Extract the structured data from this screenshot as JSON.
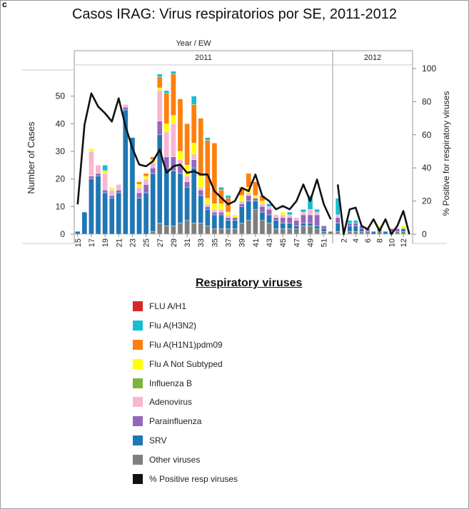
{
  "panel_label": "c",
  "chart_data": {
    "type": "bar",
    "stacked": true,
    "title": "Casos IRAG: Virus respiratorios por SE, 2011-2012",
    "header_label": "Year  /  EW",
    "year_labels": [
      "2011",
      "2012"
    ],
    "ylabel": "Number of Cases",
    "y2label": "% Positive for respiratory viruses",
    "ylim": [
      0,
      60
    ],
    "y2lim": [
      0,
      100
    ],
    "yticks": [
      0,
      10,
      20,
      30,
      40,
      50
    ],
    "y2ticks": [
      0,
      20,
      40,
      60,
      80,
      100
    ],
    "legend_title": "Respiratory viruses",
    "legend_placement": "bottom",
    "colors": {
      "FLU A/H1": "#d62728",
      "Flu A(H3N2)": "#17becf",
      "Flu A(H1N1)pdm09": "#ff7f0e",
      "Flu A Not Subtyped": "#ffff00",
      "Influenza B": "#7fb33f",
      "Adenovirus": "#f7b6d2",
      "Parainfluenza": "#9467bd",
      "SRV": "#1f77b4",
      "Other viruses": "#7f7f7f",
      "% Positive resp viruses": "#111111"
    },
    "series_order": [
      "Other viruses",
      "SRV",
      "Parainfluenza",
      "Adenovirus",
      "Influenza B",
      "Flu A Not Subtyped",
      "Flu A(H1N1)pdm09",
      "Flu A(H3N2)",
      "FLU A/H1"
    ],
    "legend_order": [
      "FLU A/H1",
      "Flu A(H3N2)",
      "Flu A(H1N1)pdm09",
      "Flu A Not Subtyped",
      "Influenza B",
      "Adenovirus",
      "Parainfluenza",
      "SRV",
      "Other viruses",
      "% Positive resp viruses"
    ],
    "categories_2011": [
      "15",
      "16",
      "17",
      "18",
      "19",
      "20",
      "21",
      "22",
      "23",
      "24",
      "25",
      "26",
      "27",
      "28",
      "29",
      "30",
      "31",
      "32",
      "33",
      "34",
      "35",
      "36",
      "37",
      "38",
      "39",
      "40",
      "41",
      "42",
      "43",
      "44",
      "45",
      "46",
      "47",
      "48",
      "49",
      "50",
      "51",
      "52"
    ],
    "categories_2012": [
      "1",
      "2",
      "3",
      "4",
      "5",
      "6",
      "7",
      "8",
      "9",
      "10",
      "11",
      "12",
      "13"
    ],
    "tick_labels_2011": [
      "15",
      "17",
      "19",
      "21",
      "23",
      "25",
      "27",
      "29",
      "31",
      "33",
      "35",
      "37",
      "39",
      "41",
      "43",
      "45",
      "47",
      "49",
      "51"
    ],
    "tick_labels_2012": [
      "2",
      "4",
      "6",
      "8",
      "10",
      "12"
    ],
    "stacks_2011": [
      {
        "Other viruses": 0,
        "SRV": 1,
        "Parainfluenza": 0,
        "Adenovirus": 0,
        "Influenza B": 0,
        "Flu A Not Subtyped": 0,
        "Flu A(H1N1)pdm09": 0,
        "Flu A(H3N2)": 0,
        "FLU A/H1": 0
      },
      {
        "Other viruses": 0,
        "SRV": 8,
        "Parainfluenza": 0,
        "Adenovirus": 0,
        "Influenza B": 0,
        "Flu A Not Subtyped": 0,
        "Flu A(H1N1)pdm09": 0,
        "Flu A(H3N2)": 0,
        "FLU A/H1": 0
      },
      {
        "Other viruses": 0,
        "SRV": 20,
        "Parainfluenza": 1,
        "Adenovirus": 9,
        "Influenza B": 0,
        "Flu A Not Subtyped": 1,
        "Flu A(H1N1)pdm09": 0,
        "Flu A(H3N2)": 0,
        "FLU A/H1": 0
      },
      {
        "Other viruses": 0,
        "SRV": 21,
        "Parainfluenza": 1,
        "Adenovirus": 3,
        "Influenza B": 0,
        "Flu A Not Subtyped": 0,
        "Flu A(H1N1)pdm09": 0,
        "Flu A(H3N2)": 0,
        "FLU A/H1": 0
      },
      {
        "Other viruses": 0,
        "SRV": 15,
        "Parainfluenza": 1,
        "Adenovirus": 6,
        "Influenza B": 0,
        "Flu A Not Subtyped": 1,
        "Flu A(H1N1)pdm09": 0,
        "Flu A(H3N2)": 2,
        "FLU A/H1": 0
      },
      {
        "Other viruses": 0,
        "SRV": 13,
        "Parainfluenza": 1,
        "Adenovirus": 2,
        "Influenza B": 0,
        "Flu A Not Subtyped": 1,
        "Flu A(H1N1)pdm09": 0,
        "Flu A(H3N2)": 0,
        "FLU A/H1": 0
      },
      {
        "Other viruses": 0,
        "SRV": 15,
        "Parainfluenza": 1,
        "Adenovirus": 2,
        "Influenza B": 0,
        "Flu A Not Subtyped": 0,
        "Flu A(H1N1)pdm09": 0,
        "Flu A(H3N2)": 0,
        "FLU A/H1": 0
      },
      {
        "Other viruses": 0,
        "SRV": 45,
        "Parainfluenza": 1,
        "Adenovirus": 1,
        "Influenza B": 0,
        "Flu A Not Subtyped": 0,
        "Flu A(H1N1)pdm09": 0,
        "Flu A(H3N2)": 0,
        "FLU A/H1": 0
      },
      {
        "Other viruses": 0,
        "SRV": 35,
        "Parainfluenza": 0,
        "Adenovirus": 0,
        "Influenza B": 0,
        "Flu A Not Subtyped": 0,
        "Flu A(H1N1)pdm09": 0,
        "Flu A(H3N2)": 0,
        "FLU A/H1": 0
      },
      {
        "Other viruses": 0,
        "SRV": 13,
        "Parainfluenza": 2,
        "Adenovirus": 2,
        "Influenza B": 0,
        "Flu A Not Subtyped": 1,
        "Flu A(H1N1)pdm09": 1,
        "Flu A(H3N2)": 0,
        "FLU A/H1": 0
      },
      {
        "Other viruses": 0,
        "SRV": 15,
        "Parainfluenza": 3,
        "Adenovirus": 2,
        "Influenza B": 0,
        "Flu A Not Subtyped": 1,
        "Flu A(H1N1)pdm09": 1,
        "Flu A(H3N2)": 0,
        "FLU A/H1": 0
      },
      {
        "Other viruses": 1,
        "SRV": 21,
        "Parainfluenza": 2,
        "Adenovirus": 2,
        "Influenza B": 0,
        "Flu A Not Subtyped": 1,
        "Flu A(H1N1)pdm09": 1,
        "Flu A(H3N2)": 0,
        "FLU A/H1": 0
      },
      {
        "Other viruses": 4,
        "SRV": 32,
        "Parainfluenza": 5,
        "Adenovirus": 11,
        "Influenza B": 0,
        "Flu A Not Subtyped": 1,
        "Flu A(H1N1)pdm09": 4,
        "Flu A(H3N2)": 1,
        "FLU A/H1": 0
      },
      {
        "Other viruses": 3,
        "SRV": 21,
        "Parainfluenza": 4,
        "Adenovirus": 9,
        "Influenza B": 0,
        "Flu A Not Subtyped": 3,
        "Flu A(H1N1)pdm09": 11,
        "Flu A(H3N2)": 1,
        "FLU A/H1": 0
      },
      {
        "Other viruses": 3,
        "SRV": 20,
        "Parainfluenza": 5,
        "Adenovirus": 12,
        "Influenza B": 0,
        "Flu A Not Subtyped": 3,
        "Flu A(H1N1)pdm09": 15,
        "Flu A(H3N2)": 1,
        "FLU A/H1": 0
      },
      {
        "Other viruses": 4,
        "SRV": 18,
        "Parainfluenza": 3,
        "Adenovirus": 2,
        "Influenza B": 0,
        "Flu A Not Subtyped": 3,
        "Flu A(H1N1)pdm09": 19,
        "Flu A(H3N2)": 0,
        "FLU A/H1": 0
      },
      {
        "Other viruses": 5,
        "SRV": 12,
        "Parainfluenza": 2,
        "Adenovirus": 2,
        "Influenza B": 0,
        "Flu A Not Subtyped": 4,
        "Flu A(H1N1)pdm09": 15,
        "Flu A(H3N2)": 0,
        "FLU A/H1": 0
      },
      {
        "Other viruses": 4,
        "SRV": 20,
        "Parainfluenza": 3,
        "Adenovirus": 2,
        "Influenza B": 0,
        "Flu A Not Subtyped": 4,
        "Flu A(H1N1)pdm09": 14,
        "Flu A(H3N2)": 3,
        "FLU A/H1": 0
      },
      {
        "Other viruses": 4,
        "SRV": 10,
        "Parainfluenza": 2,
        "Adenovirus": 1,
        "Influenza B": 0,
        "Flu A Not Subtyped": 4,
        "Flu A(H1N1)pdm09": 21,
        "Flu A(H3N2)": 0,
        "FLU A/H1": 0
      },
      {
        "Other viruses": 3,
        "SRV": 6,
        "Parainfluenza": 1,
        "Adenovirus": 1,
        "Influenza B": 0,
        "Flu A Not Subtyped": 2,
        "Flu A(H1N1)pdm09": 21,
        "Flu A(H3N2)": 1,
        "FLU A/H1": 0
      },
      {
        "Other viruses": 2,
        "SRV": 5,
        "Parainfluenza": 1,
        "Adenovirus": 1,
        "Influenza B": 0,
        "Flu A Not Subtyped": 2,
        "Flu A(H1N1)pdm09": 22,
        "Flu A(H3N2)": 0,
        "FLU A/H1": 0
      },
      {
        "Other viruses": 2,
        "SRV": 5,
        "Parainfluenza": 1,
        "Adenovirus": 1,
        "Influenza B": 0,
        "Flu A Not Subtyped": 2,
        "Flu A(H1N1)pdm09": 5,
        "Flu A(H3N2)": 1,
        "FLU A/H1": 0
      },
      {
        "Other viruses": 2,
        "SRV": 3,
        "Parainfluenza": 1,
        "Adenovirus": 1,
        "Influenza B": 0,
        "Flu A Not Subtyped": 1,
        "Flu A(H1N1)pdm09": 5,
        "Flu A(H3N2)": 1,
        "FLU A/H1": 0
      },
      {
        "Other viruses": 2,
        "SRV": 3,
        "Parainfluenza": 1,
        "Adenovirus": 0,
        "Influenza B": 0,
        "Flu A Not Subtyped": 1,
        "Flu A(H1N1)pdm09": 0,
        "Flu A(H3N2)": 0,
        "FLU A/H1": 0
      },
      {
        "Other viruses": 4,
        "SRV": 6,
        "Parainfluenza": 1,
        "Adenovirus": 1,
        "Influenza B": 0,
        "Flu A Not Subtyped": 2,
        "Flu A(H1N1)pdm09": 3,
        "Flu A(H3N2)": 0,
        "FLU A/H1": 0
      },
      {
        "Other viruses": 5,
        "SRV": 7,
        "Parainfluenza": 2,
        "Adenovirus": 1,
        "Influenza B": 0,
        "Flu A Not Subtyped": 2,
        "Flu A(H1N1)pdm09": 5,
        "Flu A(H3N2)": 0,
        "FLU A/H1": 0
      },
      {
        "Other viruses": 9,
        "SRV": 3,
        "Parainfluenza": 1,
        "Adenovirus": 0,
        "Influenza B": 0,
        "Flu A Not Subtyped": 1,
        "Flu A(H1N1)pdm09": 5,
        "Flu A(H3N2)": 0,
        "FLU A/H1": 0
      },
      {
        "Other viruses": 5,
        "SRV": 3,
        "Parainfluenza": 2,
        "Adenovirus": 1,
        "Influenza B": 0,
        "Flu A Not Subtyped": 1,
        "Flu A(H1N1)pdm09": 2,
        "Flu A(H3N2)": 0,
        "FLU A/H1": 0
      },
      {
        "Other viruses": 4,
        "SRV": 3,
        "Parainfluenza": 2,
        "Adenovirus": 1,
        "Influenza B": 0,
        "Flu A Not Subtyped": 0,
        "Flu A(H1N1)pdm09": 0,
        "Flu A(H3N2)": 1,
        "FLU A/H1": 0
      },
      {
        "Other viruses": 2,
        "SRV": 3,
        "Parainfluenza": 1,
        "Adenovirus": 1,
        "Influenza B": 0,
        "Flu A Not Subtyped": 0,
        "Flu A(H1N1)pdm09": 0,
        "Flu A(H3N2)": 0,
        "FLU A/H1": 0
      },
      {
        "Other viruses": 2,
        "SRV": 2,
        "Parainfluenza": 2,
        "Adenovirus": 1,
        "Influenza B": 0,
        "Flu A Not Subtyped": 1,
        "Flu A(H1N1)pdm09": 0,
        "Flu A(H3N2)": 0,
        "FLU A/H1": 0
      },
      {
        "Other viruses": 2,
        "SRV": 2,
        "Parainfluenza": 2,
        "Adenovirus": 1,
        "Influenza B": 0,
        "Flu A Not Subtyped": 0,
        "Flu A(H1N1)pdm09": 0,
        "Flu A(H3N2)": 1,
        "FLU A/H1": 0
      },
      {
        "Other viruses": 2,
        "SRV": 1,
        "Parainfluenza": 2,
        "Adenovirus": 1,
        "Influenza B": 0,
        "Flu A Not Subtyped": 0,
        "Flu A(H1N1)pdm09": 0,
        "Flu A(H3N2)": 0,
        "FLU A/H1": 0
      },
      {
        "Other viruses": 3,
        "SRV": 1,
        "Parainfluenza": 3,
        "Adenovirus": 1,
        "Influenza B": 0,
        "Flu A Not Subtyped": 0,
        "Flu A(H1N1)pdm09": 0,
        "Flu A(H3N2)": 1,
        "FLU A/H1": 0
      },
      {
        "Other viruses": 3,
        "SRV": 1,
        "Parainfluenza": 3,
        "Adenovirus": 2,
        "Influenza B": 0,
        "Flu A Not Subtyped": 0,
        "Flu A(H1N1)pdm09": 0,
        "Flu A(H3N2)": 5,
        "FLU A/H1": 0
      },
      {
        "Other viruses": 2,
        "SRV": 1,
        "Parainfluenza": 4,
        "Adenovirus": 1,
        "Influenza B": 0,
        "Flu A Not Subtyped": 0,
        "Flu A(H1N1)pdm09": 0,
        "Flu A(H3N2)": 1,
        "FLU A/H1": 0
      },
      {
        "Other viruses": 1,
        "SRV": 1,
        "Parainfluenza": 1,
        "Adenovirus": 0,
        "Influenza B": 0,
        "Flu A Not Subtyped": 0,
        "Flu A(H1N1)pdm09": 0,
        "Flu A(H3N2)": 0,
        "FLU A/H1": 0
      },
      {
        "Other viruses": 1,
        "SRV": 0,
        "Parainfluenza": 0,
        "Adenovirus": 0,
        "Influenza B": 0,
        "Flu A Not Subtyped": 0,
        "Flu A(H1N1)pdm09": 0,
        "Flu A(H3N2)": 0,
        "FLU A/H1": 0
      }
    ],
    "stacks_2012": [
      {
        "Other viruses": 1,
        "SRV": 3,
        "Parainfluenza": 2,
        "Adenovirus": 1,
        "Influenza B": 0,
        "Flu A Not Subtyped": 0,
        "Flu A(H1N1)pdm09": 0,
        "Flu A(H3N2)": 6,
        "FLU A/H1": 0
      },
      {
        "Other viruses": 0,
        "SRV": 0,
        "Parainfluenza": 0,
        "Adenovirus": 0,
        "Influenza B": 0,
        "Flu A Not Subtyped": 0,
        "Flu A(H1N1)pdm09": 0,
        "Flu A(H3N2)": 0,
        "FLU A/H1": 0
      },
      {
        "Other viruses": 1,
        "SRV": 2,
        "Parainfluenza": 1,
        "Adenovirus": 0,
        "Influenza B": 0,
        "Flu A Not Subtyped": 0,
        "Flu A(H1N1)pdm09": 0,
        "Flu A(H3N2)": 1,
        "FLU A/H1": 0
      },
      {
        "Other viruses": 1,
        "SRV": 2,
        "Parainfluenza": 1,
        "Adenovirus": 0,
        "Influenza B": 0,
        "Flu A Not Subtyped": 0,
        "Flu A(H1N1)pdm09": 0,
        "Flu A(H3N2)": 1,
        "FLU A/H1": 0
      },
      {
        "Other viruses": 1,
        "SRV": 1,
        "Parainfluenza": 1,
        "Adenovirus": 0,
        "Influenza B": 0,
        "Flu A Not Subtyped": 0,
        "Flu A(H1N1)pdm09": 0,
        "Flu A(H3N2)": 0,
        "FLU A/H1": 0
      },
      {
        "Other viruses": 1,
        "SRV": 0,
        "Parainfluenza": 1,
        "Adenovirus": 0,
        "Influenza B": 0,
        "Flu A Not Subtyped": 0,
        "Flu A(H1N1)pdm09": 0,
        "Flu A(H3N2)": 0,
        "FLU A/H1": 0
      },
      {
        "Other viruses": 0,
        "SRV": 1,
        "Parainfluenza": 0,
        "Adenovirus": 0,
        "Influenza B": 0,
        "Flu A Not Subtyped": 0,
        "Flu A(H1N1)pdm09": 0,
        "Flu A(H3N2)": 0,
        "FLU A/H1": 0
      },
      {
        "Other viruses": 1,
        "SRV": 1,
        "Parainfluenza": 0,
        "Adenovirus": 0,
        "Influenza B": 0,
        "Flu A Not Subtyped": 1,
        "Flu A(H1N1)pdm09": 0,
        "Flu A(H3N2)": 0,
        "FLU A/H1": 0
      },
      {
        "Other viruses": 0,
        "SRV": 1,
        "Parainfluenza": 0,
        "Adenovirus": 0,
        "Influenza B": 0,
        "Flu A Not Subtyped": 0,
        "Flu A(H1N1)pdm09": 0,
        "Flu A(H3N2)": 0,
        "FLU A/H1": 0
      },
      {
        "Other viruses": 0,
        "SRV": 1,
        "Parainfluenza": 1,
        "Adenovirus": 0,
        "Influenza B": 0,
        "Flu A Not Subtyped": 0,
        "Flu A(H1N1)pdm09": 0,
        "Flu A(H3N2)": 0,
        "FLU A/H1": 0
      },
      {
        "Other viruses": 1,
        "SRV": 0,
        "Parainfluenza": 1,
        "Adenovirus": 0,
        "Influenza B": 0,
        "Flu A Not Subtyped": 0,
        "Flu A(H1N1)pdm09": 0,
        "Flu A(H3N2)": 0,
        "FLU A/H1": 0
      },
      {
        "Other viruses": 1,
        "SRV": 1,
        "Parainfluenza": 0,
        "Adenovirus": 0,
        "Influenza B": 0,
        "Flu A Not Subtyped": 1,
        "Flu A(H1N1)pdm09": 0,
        "Flu A(H3N2)": 0,
        "FLU A/H1": 0
      },
      {
        "Other viruses": 0,
        "SRV": 0,
        "Parainfluenza": 0,
        "Adenovirus": 0,
        "Influenza B": 0,
        "Flu A Not Subtyped": 0,
        "Flu A(H1N1)pdm09": 0,
        "Flu A(H3N2)": 0,
        "FLU A/H1": 0
      }
    ],
    "pct_positive_2011": [
      18,
      66,
      85,
      77,
      73,
      68,
      82,
      65,
      52,
      42,
      41,
      44,
      51,
      37,
      41,
      42,
      37,
      38,
      36,
      36,
      26,
      22,
      18,
      20,
      28,
      26,
      36,
      23,
      20,
      15,
      17,
      15,
      20,
      30,
      20,
      33,
      18,
      9
    ],
    "pct_positive_2012": [
      30,
      0,
      15,
      16,
      5,
      3,
      9,
      2,
      9,
      0,
      5,
      14,
      0
    ]
  }
}
